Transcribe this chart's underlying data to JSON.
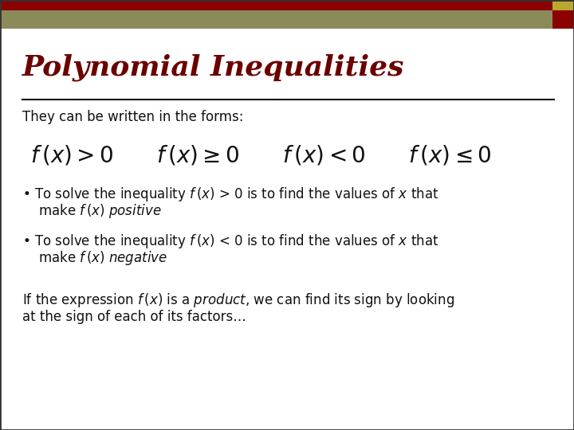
{
  "title": "Polynomial Inequalities",
  "title_color": "#6B0000",
  "title_fontsize": 26,
  "bg_color": "#FFFFFF",
  "header_bar1_color": "#8B8B5A",
  "header_bar2_color": "#8B0000",
  "header_sq1_color": "#8B0000",
  "header_sq2_color": "#B8A830",
  "separator_color": "#111111",
  "subtitle": "They can be written in the forms:",
  "subtitle_fontsize": 12,
  "formula_fontsize": 20,
  "body_fontsize": 12,
  "text_color": "#111111"
}
